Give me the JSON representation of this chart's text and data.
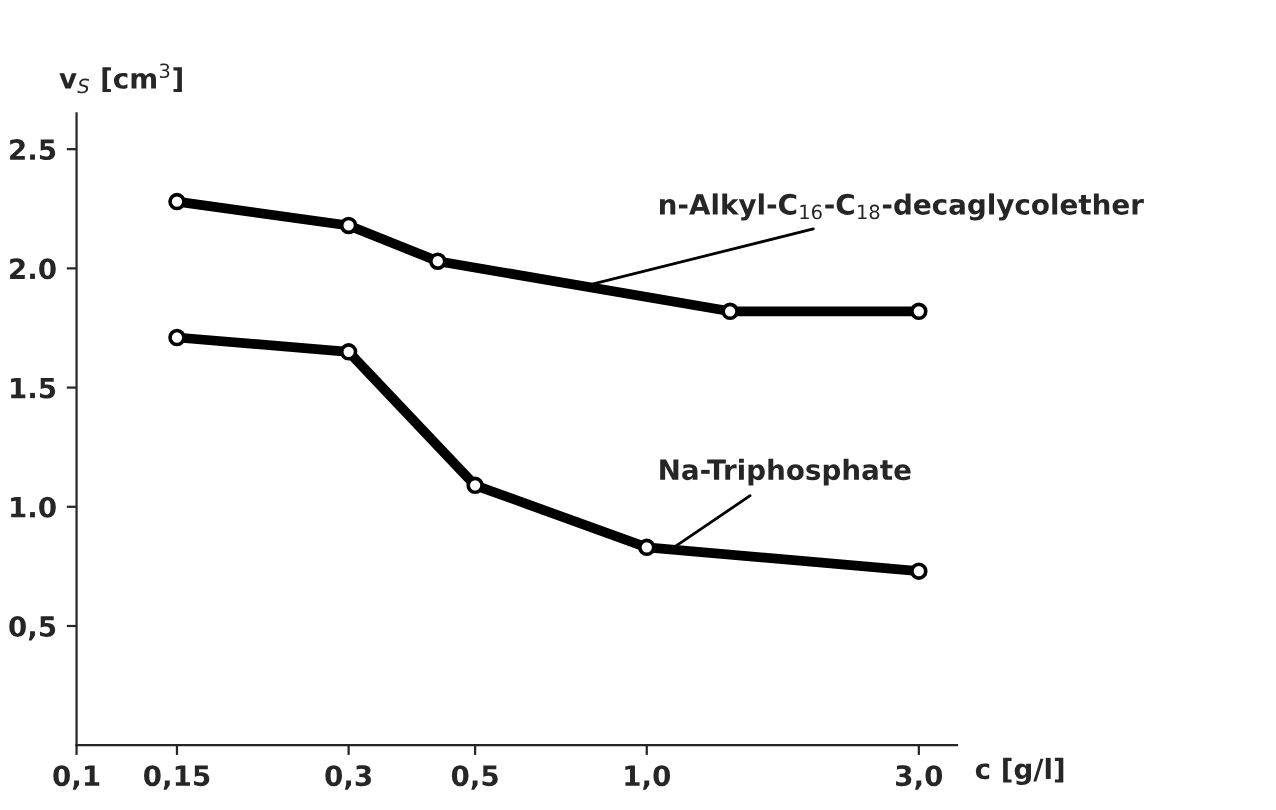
{
  "chart_data": {
    "type": "line",
    "xlabel": "c [g/l]",
    "ylabel": "v$_{S}$ [cm$^{3}$]",
    "log": "x",
    "xlim": [
      0.1,
      3.5
    ],
    "ylim": [
      0,
      2.65
    ],
    "xticks": [
      {
        "value": 0.1,
        "label": "0,1"
      },
      {
        "value": 0.15,
        "label": "0,15"
      },
      {
        "value": 0.3,
        "label": "0,3"
      },
      {
        "value": 0.5,
        "label": "0,5"
      },
      {
        "value": 1.0,
        "label": "1,0"
      },
      {
        "value": 3.0,
        "label": "3,0"
      }
    ],
    "yticks": [
      {
        "value": 0.5,
        "label": "0,5"
      },
      {
        "value": 1.0,
        "label": "1.0"
      },
      {
        "value": 1.5,
        "label": "1.5"
      },
      {
        "value": 2.0,
        "label": "2.0"
      },
      {
        "value": 2.5,
        "label": "2.5"
      }
    ],
    "marker": "circle",
    "grid": false,
    "legend": false,
    "series": [
      {
        "name": "n-Alkyl-C$_{16}$-C$_{18}$-decaglycolether",
        "color": "#000000",
        "x": [
          0.15,
          0.3,
          0.43,
          1.4,
          3.0
        ],
        "values": [
          2.28,
          2.18,
          2.03,
          1.82,
          1.82
        ]
      },
      {
        "name": "Na-Triphosphate",
        "color": "#000000",
        "x": [
          0.15,
          0.3,
          0.5,
          1.0,
          3.0
        ],
        "values": [
          1.71,
          1.65,
          1.09,
          0.83,
          0.73
        ]
      }
    ]
  }
}
